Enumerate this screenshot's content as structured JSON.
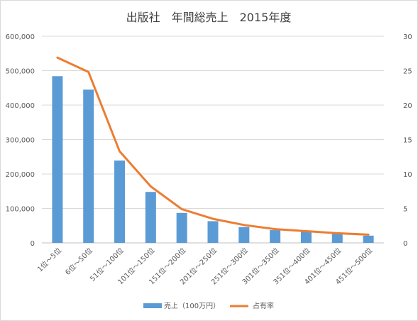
{
  "chart_data": {
    "type": "bar",
    "title": "出版社　年間総売上　2015年度",
    "categories": [
      "1位～5位",
      "6位～50位",
      "51位～100位",
      "101位～150位",
      "151位～200位",
      "201位～250位",
      "251位～300位",
      "301位～350位",
      "351位～400位",
      "401位～450位",
      "451位～500位"
    ],
    "series": [
      {
        "name": "売上（100万円）",
        "type": "bar",
        "axis": "left",
        "color": "#5b9bd5",
        "values": [
          484000,
          445000,
          239000,
          148000,
          87000,
          63000,
          46000,
          37000,
          33000,
          26000,
          21000
        ]
      },
      {
        "name": "占有率",
        "type": "line",
        "axis": "right",
        "color": "#ed7d31",
        "values": [
          26.9,
          24.8,
          13.3,
          8.2,
          4.9,
          3.5,
          2.6,
          2.0,
          1.7,
          1.4,
          1.2
        ]
      }
    ],
    "y_left": {
      "min": 0,
      "max": 600000,
      "ticks": [
        "0",
        "100,000",
        "200,000",
        "300,000",
        "400,000",
        "500,000",
        "600,000"
      ]
    },
    "y_right": {
      "min": 0,
      "max": 30,
      "ticks": [
        "0",
        "5",
        "10",
        "15",
        "20",
        "25",
        "30"
      ]
    },
    "grid": true,
    "legend": "bottom"
  }
}
